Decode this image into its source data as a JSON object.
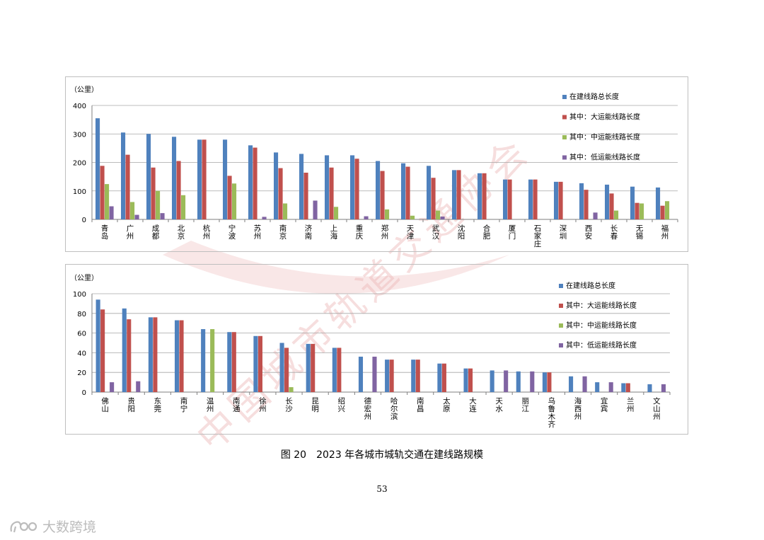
{
  "watermark": {
    "text": "中国城市轨道交通协会"
  },
  "legend": {
    "total": "在建线路总长度",
    "large": "其中：大运能线路长度",
    "medium": "其中：中运能线路长度",
    "low": "其中：低运能线路长度"
  },
  "colors": {
    "total": "#4f81bd",
    "large": "#c0504d",
    "medium": "#9bbb59",
    "low": "#8064a2",
    "grid": "#a6a6a6",
    "watermark": "#e8aaaa"
  },
  "chart_data": [
    {
      "type": "bar",
      "ylabel": "（公里）",
      "ylim": [
        0,
        400
      ],
      "yticks": [
        0,
        100,
        200,
        300,
        400
      ],
      "legend_position": "top-right",
      "grid": true,
      "categories": [
        "青岛",
        "广州",
        "成都",
        "北京",
        "杭州",
        "宁波",
        "苏州",
        "南京",
        "济南",
        "上海",
        "重庆",
        "郑州",
        "天津",
        "武汉",
        "沈阳",
        "合肥",
        "厦门",
        "石家庄",
        "深圳",
        "西安",
        "长春",
        "无锡",
        "福州"
      ],
      "series": [
        {
          "name": "在建线路总长度",
          "values": [
            355,
            305,
            300,
            290,
            280,
            280,
            260,
            235,
            230,
            225,
            225,
            205,
            197,
            188,
            173,
            162,
            140,
            140,
            132,
            127,
            122,
            115,
            112
          ]
        },
        {
          "name": "其中：大运能线路长度",
          "values": [
            188,
            227,
            182,
            205,
            280,
            153,
            252,
            180,
            164,
            182,
            213,
            170,
            185,
            146,
            173,
            162,
            140,
            140,
            132,
            104,
            91,
            58,
            48
          ]
        },
        {
          "name": "其中：中运能线路长度",
          "values": [
            124,
            61,
            100,
            85,
            0,
            126,
            0,
            56,
            0,
            44,
            0,
            35,
            13,
            31,
            0,
            0,
            0,
            0,
            0,
            0,
            31,
            56,
            64
          ]
        },
        {
          "name": "其中：低运能线路长度",
          "values": [
            46,
            16,
            22,
            0,
            0,
            0,
            9,
            0,
            66,
            0,
            11,
            0,
            0,
            10,
            0,
            0,
            0,
            0,
            0,
            24,
            0,
            0,
            0
          ]
        }
      ]
    },
    {
      "type": "bar",
      "ylabel": "（公里）",
      "ylim": [
        0,
        100
      ],
      "yticks": [
        0,
        20,
        40,
        60,
        80,
        100
      ],
      "legend_position": "top-right",
      "grid": true,
      "categories": [
        "佛山",
        "贵阳",
        "东莞",
        "南宁",
        "温州",
        "南通",
        "徐州",
        "长沙",
        "昆明",
        "绍兴",
        "德宏州",
        "哈尔滨",
        "南昌",
        "太原",
        "大连",
        "天水",
        "丽江",
        "乌鲁木齐",
        "海西州",
        "宜宾",
        "兰州",
        "文山州"
      ],
      "series": [
        {
          "name": "在建线路总长度",
          "values": [
            94,
            85,
            76,
            73,
            64,
            61,
            57,
            50,
            49,
            45,
            36,
            33,
            33,
            29,
            24,
            22,
            21,
            20,
            16,
            10,
            9,
            8
          ]
        },
        {
          "name": "其中：大运能线路长度",
          "values": [
            84,
            74,
            76,
            73,
            0,
            61,
            57,
            45,
            49,
            45,
            0,
            33,
            33,
            29,
            24,
            0,
            0,
            20,
            0,
            0,
            9,
            0
          ]
        },
        {
          "name": "其中：中运能线路长度",
          "values": [
            0,
            0,
            0,
            0,
            64,
            0,
            0,
            5,
            0,
            0,
            0,
            0,
            0,
            0,
            0,
            0,
            0,
            0,
            0,
            0,
            0,
            0
          ]
        },
        {
          "name": "其中：低运能线路长度",
          "values": [
            10,
            11,
            0,
            0,
            0,
            0,
            0,
            0,
            0,
            0,
            36,
            0,
            0,
            0,
            0,
            22,
            21,
            0,
            16,
            10,
            0,
            8
          ]
        }
      ]
    }
  ],
  "caption": "图 20　2023 年各城市城轨交通在建线路规模",
  "page_number": "53",
  "brand": {
    "text": "大数跨境"
  }
}
